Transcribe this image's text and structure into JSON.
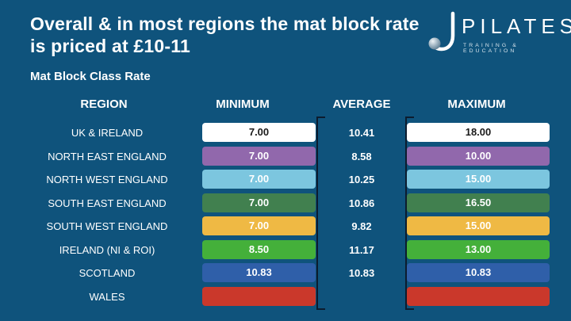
{
  "slide": {
    "title_line1": "Overall & in most regions the mat block rate",
    "title_line2": "is priced at £10-11",
    "subtitle": "Mat Block Class Rate"
  },
  "logo": {
    "name": "PILATES",
    "tagline": "TRAINING & EDUCATION"
  },
  "colors": {
    "background": "#0F537C",
    "bracket": "#0C1C2E"
  },
  "chart_data": {
    "type": "table",
    "title": "Mat Block Class Rate",
    "columns": [
      "REGION",
      "MINIMUM",
      "AVERAGE",
      "MAXIMUM"
    ],
    "rows": [
      {
        "region": "UK & IRELAND",
        "min": "7.00",
        "avg": "10.41",
        "max": "18.00",
        "bar_color": "#FFFFFF",
        "bar_text_color": "#1A1A1A"
      },
      {
        "region": "NORTH EAST ENGLAND",
        "min": "7.00",
        "avg": "8.58",
        "max": "10.00",
        "bar_color": "#9168AC",
        "bar_text_color": "#FFFFFF"
      },
      {
        "region": "NORTH WEST ENGLAND",
        "min": "7.00",
        "avg": "10.25",
        "max": "15.00",
        "bar_color": "#7CC6DF",
        "bar_text_color": "#FFFFFF"
      },
      {
        "region": "SOUTH EAST ENGLAND",
        "min": "7.00",
        "avg": "10.86",
        "max": "16.50",
        "bar_color": "#41804F",
        "bar_text_color": "#FFFFFF"
      },
      {
        "region": "SOUTH WEST ENGLAND",
        "min": "7.00",
        "avg": "9.82",
        "max": "15.00",
        "bar_color": "#EFB944",
        "bar_text_color": "#FFFFFF"
      },
      {
        "region": "IRELAND (NI & ROI)",
        "min": "8.50",
        "avg": "11.17",
        "max": "13.00",
        "bar_color": "#44B03A",
        "bar_text_color": "#FFFFFF"
      },
      {
        "region": "SCOTLAND",
        "min": "10.83",
        "avg": "10.83",
        "max": "10.83",
        "bar_color": "#2F5FA9",
        "bar_text_color": "#FFFFFF"
      },
      {
        "region": "WALES",
        "min": "",
        "avg": "",
        "max": "",
        "bar_color": "#CA382B",
        "bar_text_color": "#FFFFFF"
      }
    ]
  }
}
